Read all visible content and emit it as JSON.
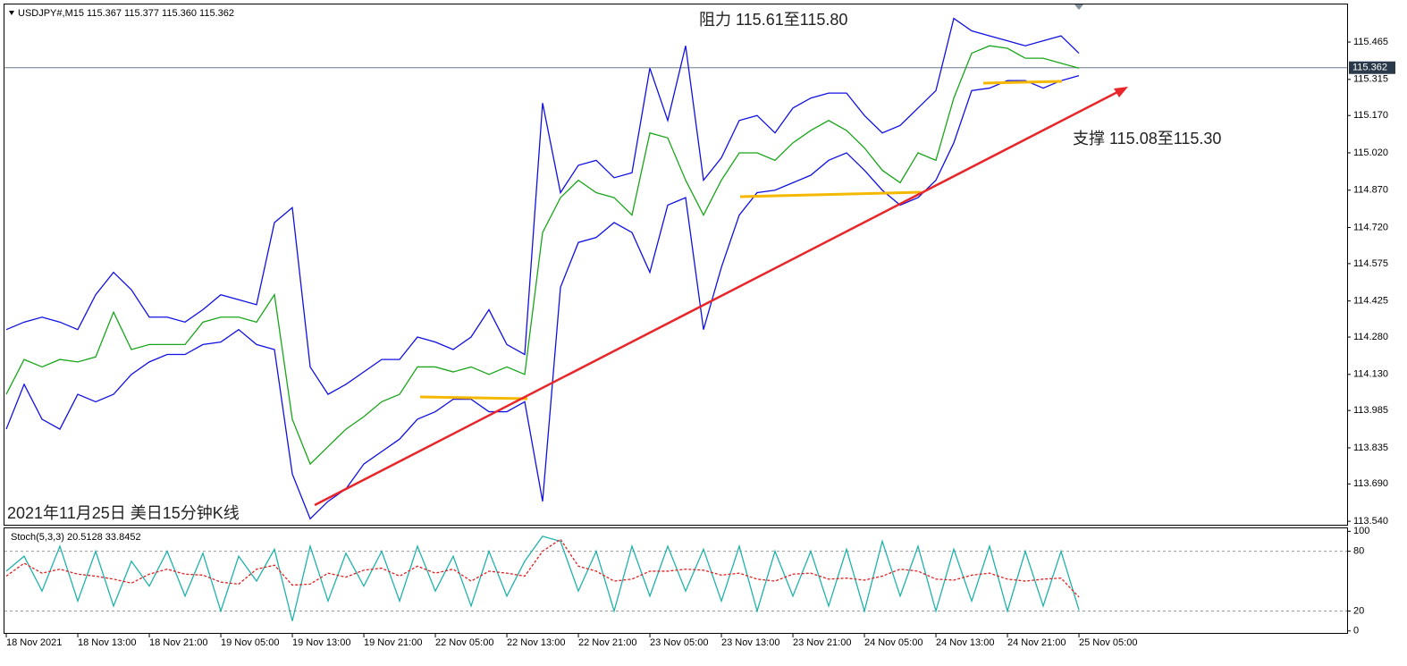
{
  "chart_data": [
    {
      "type": "line",
      "title": "USDJPY#,M15  115.367 115.377 115.360 115.362",
      "annotations": [
        "阻力 115.61至115.80",
        "支撑 115.08至115.30",
        "2021年11月25日 美日15分钟K线"
      ],
      "current_price": 115.362,
      "categories": [
        "18 Nov 2021",
        null,
        null,
        null,
        "18 Nov 13:00",
        null,
        null,
        null,
        "18 Nov 21:00",
        null,
        null,
        null,
        "19 Nov 05:00",
        null,
        null,
        null,
        "19 Nov 13:00",
        null,
        null,
        null,
        "19 Nov 21:00",
        null,
        null,
        null,
        "22 Nov 05:00",
        null,
        null,
        null,
        "22 Nov 13:00",
        null,
        null,
        null,
        "22 Nov 21:00",
        null,
        null,
        null,
        "23 Nov 05:00",
        null,
        null,
        null,
        "23 Nov 13:00",
        null,
        null,
        null,
        "23 Nov 21:00",
        null,
        null,
        null,
        "24 Nov 05:00",
        null,
        null,
        null,
        "24 Nov 13:00",
        null,
        null,
        null,
        "24 Nov 21:00",
        null,
        null,
        null,
        "25 Nov 05:00"
      ],
      "ylim": [
        113.526,
        115.616
      ],
      "yticks": [
        {
          "value": 113.54,
          "label": "113.540"
        },
        {
          "value": 113.69,
          "label": "113.690"
        },
        {
          "value": 113.835,
          "label": "113.835"
        },
        {
          "value": 113.985,
          "label": "113.985"
        },
        {
          "value": 114.13,
          "label": "114.130"
        },
        {
          "value": 114.28,
          "label": "114.280"
        },
        {
          "value": 114.425,
          "label": "114.425"
        },
        {
          "value": 114.575,
          "label": "114.575"
        },
        {
          "value": 114.72,
          "label": "114.720"
        },
        {
          "value": 114.87,
          "label": "114.870"
        },
        {
          "value": 115.02,
          "label": "115.020"
        },
        {
          "value": 115.17,
          "label": "115.170"
        },
        {
          "value": 115.315,
          "label": "115.315"
        },
        {
          "value": 115.465,
          "label": "115.465"
        }
      ],
      "series": [
        {
          "color": "#1aa51a",
          "values": [
            114.05,
            114.19,
            114.16,
            114.19,
            114.18,
            114.2,
            114.38,
            114.23,
            114.25,
            114.25,
            114.25,
            114.34,
            114.36,
            114.36,
            114.34,
            114.45,
            113.95,
            113.77,
            113.84,
            113.91,
            113.96,
            114.02,
            114.05,
            114.16,
            114.16,
            114.14,
            114.16,
            114.13,
            114.16,
            114.13,
            114.7,
            114.84,
            114.91,
            114.86,
            114.84,
            114.77,
            115.1,
            115.08,
            114.91,
            114.77,
            114.91,
            115.02,
            115.02,
            114.99,
            115.06,
            115.11,
            115.15,
            115.11,
            115.04,
            114.95,
            114.9,
            115.02,
            114.99,
            115.24,
            115.42,
            115.45,
            115.44,
            115.4,
            115.4,
            115.38,
            115.36
          ]
        },
        {
          "color": "#1010e0",
          "values": [
            114.31,
            114.34,
            114.36,
            114.34,
            114.31,
            114.45,
            114.54,
            114.47,
            114.36,
            114.36,
            114.34,
            114.39,
            114.45,
            114.43,
            114.41,
            114.74,
            114.8,
            114.16,
            114.05,
            114.09,
            114.14,
            114.19,
            114.19,
            114.28,
            114.26,
            114.23,
            114.28,
            114.39,
            114.25,
            114.21,
            115.22,
            114.86,
            114.97,
            114.99,
            114.92,
            114.94,
            115.36,
            115.15,
            115.45,
            114.91,
            115.0,
            115.15,
            115.17,
            115.1,
            115.2,
            115.24,
            115.26,
            115.26,
            115.17,
            115.1,
            115.13,
            115.2,
            115.27,
            115.56,
            115.51,
            115.49,
            115.47,
            115.45,
            115.47,
            115.49,
            115.42
          ]
        },
        {
          "color": "#1010e0",
          "values": [
            113.91,
            114.09,
            113.95,
            113.91,
            114.05,
            114.02,
            114.05,
            114.13,
            114.18,
            114.21,
            114.21,
            114.25,
            114.26,
            114.31,
            114.25,
            114.23,
            113.73,
            113.55,
            113.62,
            113.67,
            113.77,
            113.82,
            113.87,
            113.95,
            113.98,
            114.03,
            114.03,
            113.98,
            113.98,
            114.02,
            113.62,
            114.48,
            114.66,
            114.68,
            114.74,
            114.7,
            114.54,
            114.81,
            114.84,
            114.31,
            114.56,
            114.77,
            114.86,
            114.87,
            114.9,
            114.93,
            114.99,
            115.02,
            114.95,
            114.87,
            114.81,
            114.84,
            114.91,
            115.06,
            115.27,
            115.28,
            115.31,
            115.31,
            115.28,
            115.31,
            115.33
          ]
        }
      ]
    },
    {
      "type": "line",
      "title": "Stoch(5,3,3) 20.5128 33.8452",
      "ylim": [
        -2,
        103
      ],
      "yticks": [
        0,
        20,
        80,
        100
      ],
      "series": [
        {
          "color": "#20b2aa",
          "values": [
            60,
            75,
            40,
            85,
            30,
            80,
            25,
            70,
            45,
            80,
            35,
            78,
            20,
            75,
            50,
            82,
            10,
            85,
            30,
            78,
            45,
            80,
            30,
            85,
            40,
            75,
            25,
            80,
            35,
            70,
            95,
            90,
            40,
            80,
            20,
            85,
            35,
            85,
            40,
            82,
            30,
            85,
            20,
            80,
            35,
            80,
            25,
            82,
            20,
            90,
            35,
            85,
            20,
            82,
            30,
            85,
            20,
            80,
            25,
            80,
            21
          ]
        },
        {
          "color": "#e02020",
          "dash": true,
          "values": [
            55,
            68,
            58,
            62,
            57,
            55,
            52,
            48,
            57,
            62,
            57,
            56,
            49,
            47,
            62,
            66,
            46,
            47,
            58,
            54,
            61,
            63,
            55,
            65,
            58,
            62,
            50,
            60,
            58,
            55,
            80,
            92,
            65,
            60,
            50,
            52,
            60,
            60,
            62,
            61,
            56,
            58,
            52,
            50,
            57,
            58,
            52,
            53,
            51,
            55,
            62,
            60,
            52,
            51,
            56,
            58,
            52,
            50,
            52,
            53,
            34
          ]
        }
      ]
    }
  ]
}
